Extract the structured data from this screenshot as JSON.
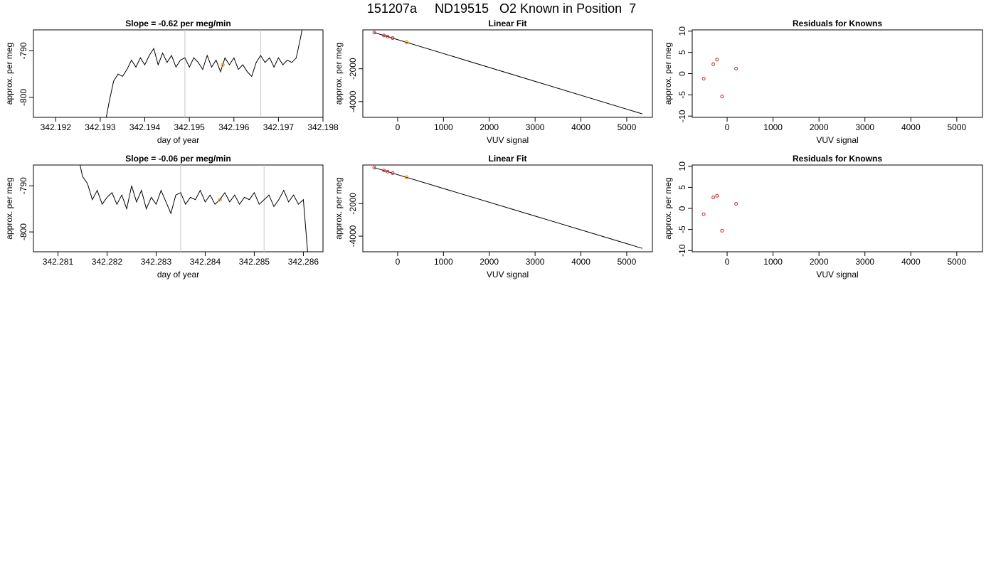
{
  "figure": {
    "title": "151207a     ND19515   O2 Known in Position  7"
  },
  "colors": {
    "known_point": "#d22020",
    "current_point": "#f08a00",
    "ref_line": "#c8c8c8",
    "trace": "#000000"
  },
  "chart_data": [
    {
      "type": "line",
      "title": "Slope =  -0.62  per meg/min",
      "xlabel": "day of year",
      "ylabel": "approx. per meg",
      "xlim": [
        342.1915,
        342.198
      ],
      "ylim": [
        -804.3,
        -785.5
      ],
      "xticks": [
        "342.192",
        "342.193",
        "342.194",
        "342.195",
        "342.196",
        "342.197",
        "342.198"
      ],
      "yticks": [
        "-790",
        "-800"
      ],
      "xtick_values": [
        342.192,
        342.193,
        342.194,
        342.195,
        342.196,
        342.197,
        342.198
      ],
      "ytick_values": [
        -790,
        -800
      ],
      "vlines": [
        342.1949,
        342.1966
      ],
      "highlight": {
        "x": 342.19575,
        "y": -793.0
      },
      "series": [
        {
          "x": [
            342.1931,
            342.1932,
            342.1933,
            342.1934,
            342.1935,
            342.1936,
            342.1937,
            342.1938,
            342.1939,
            342.194,
            342.1941,
            342.1942,
            342.1943,
            342.1944,
            342.1945,
            342.1946,
            342.1947,
            342.1948,
            342.1949,
            342.195,
            342.1951,
            342.1952,
            342.1953,
            342.1954,
            342.1955,
            342.1956,
            342.1957,
            342.1958,
            342.1959,
            342.196,
            342.1961,
            342.1962,
            342.1963,
            342.1964,
            342.1965,
            342.1966,
            342.1967,
            342.1968,
            342.1969,
            342.197,
            342.1971,
            342.1972,
            342.1973,
            342.1974,
            342.1975,
            342.1976
          ],
          "y": [
            -806,
            -801,
            -796.5,
            -795,
            -795.5,
            -794,
            -792,
            -793.5,
            -791.5,
            -793,
            -791,
            -789.5,
            -793,
            -790.5,
            -792.5,
            -791,
            -793.5,
            -792,
            -791.5,
            -793.5,
            -791.5,
            -792.5,
            -794,
            -791,
            -793.5,
            -792,
            -794.5,
            -791.5,
            -793,
            -791.5,
            -794,
            -793,
            -794.5,
            -795.5,
            -792.5,
            -791,
            -792.5,
            -791.5,
            -793.5,
            -791.5,
            -793,
            -792,
            -792.5,
            -791.5,
            -787,
            -782
          ]
        }
      ]
    },
    {
      "type": "scatter",
      "title": "Linear Fit",
      "xlabel": "VUV signal",
      "ylabel": "approx. per meg",
      "xlim": [
        -760,
        5560
      ],
      "ylim": [
        -4960,
        370
      ],
      "xticks": [
        "0",
        "1000",
        "2000",
        "3000",
        "4000",
        "5000"
      ],
      "yticks": [
        "-2000",
        "-4000"
      ],
      "xtick_values": [
        0,
        1000,
        2000,
        3000,
        4000,
        5000
      ],
      "ytick_values": [
        -2000,
        -4000
      ],
      "fit_line": {
        "x": [
          -510,
          5340
        ],
        "y": [
          209,
          -4750
        ]
      },
      "knowns": {
        "x": [
          -510,
          -300,
          -220,
          -110
        ],
        "y": [
          209,
          30,
          -40,
          -130
        ]
      },
      "current": {
        "x": 195,
        "y": -385
      }
    },
    {
      "type": "scatter",
      "title": "Residuals for Knowns",
      "xlabel": "VUV signal",
      "ylabel": "approx. per meg",
      "xlim": [
        -760,
        5560
      ],
      "ylim": [
        -10.3,
        10.3
      ],
      "xticks": [
        "0",
        "1000",
        "2000",
        "3000",
        "4000",
        "5000"
      ],
      "yticks": [
        "-10",
        "-5",
        "0",
        "5",
        "10"
      ],
      "xtick_values": [
        0,
        1000,
        2000,
        3000,
        4000,
        5000
      ],
      "ytick_values": [
        -10,
        -5,
        0,
        5,
        10
      ],
      "knowns": {
        "x": [
          -510,
          -300,
          -220,
          -110,
          195
        ],
        "y": [
          -1.2,
          2.2,
          3.3,
          -5.4,
          1.2
        ]
      }
    },
    {
      "type": "line",
      "title": "Slope =  -0.06  per meg/min",
      "xlabel": "day of year",
      "ylabel": "approx. per meg",
      "xlim": [
        342.2805,
        342.2864
      ],
      "ylim": [
        -804.3,
        -785.5
      ],
      "xticks": [
        "342.281",
        "342.282",
        "342.283",
        "342.284",
        "342.285",
        "342.286"
      ],
      "yticks": [
        "-790",
        "-800"
      ],
      "xtick_values": [
        342.281,
        342.282,
        342.283,
        342.284,
        342.285,
        342.286
      ],
      "ytick_values": [
        -790,
        -800
      ],
      "vlines": [
        342.2835,
        342.2852
      ],
      "highlight": {
        "x": 342.2843,
        "y": -793.0
      },
      "series": [
        {
          "x": [
            342.2814,
            342.2815,
            342.2816,
            342.2817,
            342.2818,
            342.2819,
            342.282,
            342.2821,
            342.2822,
            342.2823,
            342.2824,
            342.2825,
            342.2826,
            342.2827,
            342.2828,
            342.2829,
            342.283,
            342.2831,
            342.2832,
            342.2833,
            342.2834,
            342.2835,
            342.2836,
            342.2837,
            342.2838,
            342.2839,
            342.284,
            342.2841,
            342.2842,
            342.2843,
            342.2844,
            342.2845,
            342.2846,
            342.2847,
            342.2848,
            342.2849,
            342.285,
            342.2851,
            342.2852,
            342.2853,
            342.2854,
            342.2855,
            342.2856,
            342.2857,
            342.2858,
            342.2859,
            342.286,
            342.2861
          ],
          "y": [
            -783,
            -788,
            -789.5,
            -793,
            -791,
            -794,
            -792.5,
            -791.5,
            -794,
            -792,
            -795,
            -790,
            -793.5,
            -791,
            -795,
            -792.5,
            -794,
            -791,
            -793.5,
            -796,
            -792,
            -791.5,
            -794,
            -792.5,
            -793,
            -791,
            -793.5,
            -792,
            -794,
            -793,
            -791.5,
            -793.5,
            -792,
            -794,
            -792.5,
            -793,
            -791.5,
            -794,
            -793,
            -792,
            -794.5,
            -793,
            -791,
            -793.5,
            -792,
            -794,
            -793,
            -806
          ]
        }
      ]
    },
    {
      "type": "scatter",
      "title": "Linear Fit",
      "xlabel": "VUV signal",
      "ylabel": "approx. per meg",
      "xlim": [
        -760,
        5560
      ],
      "ylim": [
        -4960,
        370
      ],
      "xticks": [
        "0",
        "1000",
        "2000",
        "3000",
        "4000",
        "5000"
      ],
      "yticks": [
        "-2000",
        "-4000"
      ],
      "xtick_values": [
        0,
        1000,
        2000,
        3000,
        4000,
        5000
      ],
      "ytick_values": [
        -2000,
        -4000
      ],
      "fit_line": {
        "x": [
          -510,
          5340
        ],
        "y": [
          209,
          -4750
        ]
      },
      "knowns": {
        "x": [
          -510,
          -300,
          -220,
          -110
        ],
        "y": [
          209,
          30,
          -40,
          -130
        ]
      },
      "current": {
        "x": 195,
        "y": -385
      }
    },
    {
      "type": "scatter",
      "title": "Residuals for Knowns",
      "xlabel": "VUV signal",
      "ylabel": "approx. per meg",
      "xlim": [
        -760,
        5560
      ],
      "ylim": [
        -10.3,
        10.3
      ],
      "xticks": [
        "0",
        "1000",
        "2000",
        "3000",
        "4000",
        "5000"
      ],
      "yticks": [
        "-10",
        "-5",
        "0",
        "5",
        "10"
      ],
      "xtick_values": [
        0,
        1000,
        2000,
        3000,
        4000,
        5000
      ],
      "ytick_values": [
        -10,
        -5,
        0,
        5,
        10
      ],
      "knowns": {
        "x": [
          -510,
          -300,
          -220,
          -110,
          195
        ],
        "y": [
          -1.4,
          2.6,
          3.0,
          -5.3,
          1.1
        ]
      }
    }
  ]
}
